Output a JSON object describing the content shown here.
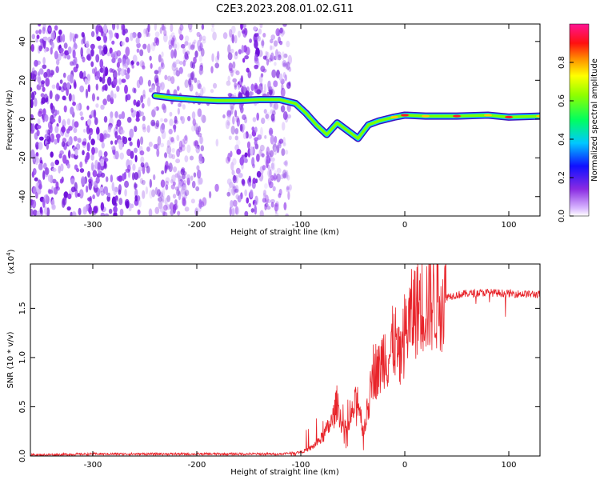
{
  "title": "C2E3.2023.208.01.02.G11",
  "colors": {
    "snr_line": "#e8242a",
    "axis": "#000000",
    "background": "#ffffff"
  },
  "chart_data": [
    {
      "type": "heatmap",
      "panel": "spectrogram",
      "xlabel": "Height of straight line (km)",
      "ylabel": "Frequency (Hz)",
      "xlim": [
        -360,
        130
      ],
      "ylim": [
        -50,
        49
      ],
      "xticks": [
        -300,
        -200,
        -100,
        0,
        100
      ],
      "yticks": [
        -40,
        -20,
        0,
        20,
        40
      ],
      "ridge": {
        "height_km": [
          -240,
          -225,
          -200,
          -180,
          -160,
          -140,
          -120,
          -105,
          -95,
          -85,
          -75,
          -65,
          -55,
          -45,
          -35,
          -25,
          -10,
          0,
          20,
          50,
          80,
          100,
          130
        ],
        "frequency_hz": [
          12,
          11,
          10,
          9.5,
          9.5,
          10,
          10,
          8,
          3,
          -3,
          -8,
          -2,
          -6,
          -10,
          -3,
          -1,
          1,
          2,
          1.5,
          1.5,
          2,
          1,
          1.5
        ]
      },
      "noise_region_km": [
        -360,
        -110
      ]
    },
    {
      "type": "colorbar",
      "label": "Normalized spectral amplitude",
      "range": [
        0.0,
        1.0
      ],
      "ticks": [
        "0.0",
        "0.2",
        "0.4",
        "0.6",
        "0.8"
      ]
    },
    {
      "type": "line",
      "panel": "snr",
      "xlabel": "Height of straight line (km)",
      "ylabel": "SNR (10 * v/v)",
      "scale_label": "(x10",
      "scale_exp": "4",
      "scale_close": ")",
      "xlim": [
        -360,
        130
      ],
      "ylim": [
        0,
        1.95
      ],
      "xticks": [
        -300,
        -200,
        -100,
        0,
        100
      ],
      "yticks": [
        "0.0",
        "0.5",
        "1.0",
        "1.5"
      ],
      "series": [
        {
          "name": "SNR (x10^4)",
          "x": [
            -360,
            -300,
            -200,
            -120,
            -100,
            -90,
            -80,
            -70,
            -65,
            -60,
            -55,
            -50,
            -45,
            -40,
            -35,
            -30,
            -25,
            -20,
            -15,
            -10,
            -5,
            0,
            10,
            20,
            30,
            40,
            60,
            80,
            100,
            130
          ],
          "y": [
            0.01,
            0.02,
            0.02,
            0.02,
            0.04,
            0.08,
            0.18,
            0.35,
            0.55,
            0.3,
            0.25,
            0.45,
            0.6,
            0.25,
            0.5,
            0.9,
            0.85,
            1.05,
            1.0,
            1.2,
            0.95,
            1.25,
            1.5,
            1.55,
            1.6,
            1.62,
            1.65,
            1.66,
            1.65,
            1.64
          ]
        }
      ]
    }
  ]
}
